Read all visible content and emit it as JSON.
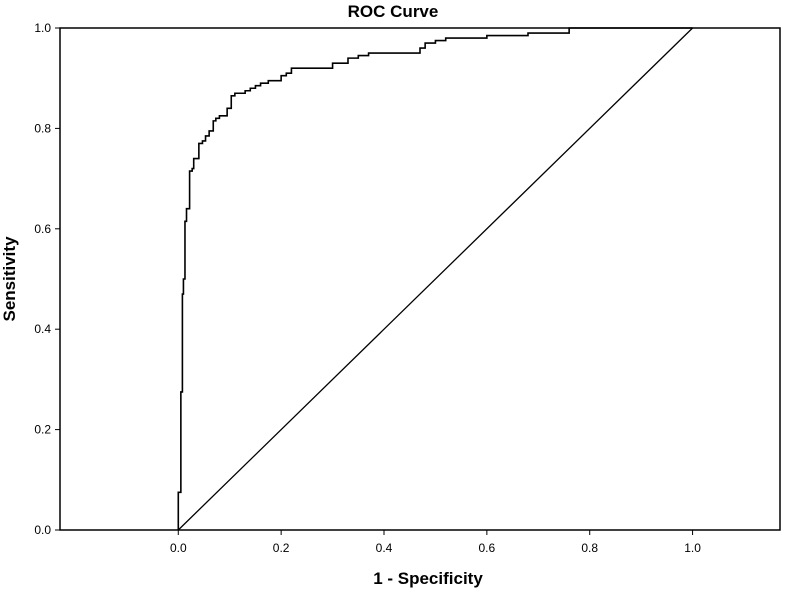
{
  "chart_data": {
    "type": "line",
    "title": "ROC Curve",
    "xlabel": "1 - Specificity",
    "ylabel": "Sensitivity",
    "xlim": [
      -0.23,
      1.17
    ],
    "ylim": [
      0,
      1
    ],
    "x_ticks": [
      "0.0",
      "0.2",
      "0.4",
      "0.6",
      "0.8",
      "1.0"
    ],
    "y_ticks": [
      "0.0",
      "0.2",
      "0.4",
      "0.6",
      "0.8",
      "1.0"
    ],
    "grid": false,
    "legend": "none",
    "colors": {
      "curve": "#000000",
      "reference": "#000000",
      "frame": "#000000"
    },
    "series": [
      {
        "x": [
          0.0,
          0.0,
          0.005,
          0.005,
          0.008,
          0.008,
          0.01,
          0.01,
          0.013,
          0.013,
          0.016,
          0.016,
          0.022,
          0.022,
          0.027,
          0.027,
          0.03,
          0.03,
          0.04,
          0.04,
          0.047,
          0.047,
          0.053,
          0.053,
          0.06,
          0.06,
          0.068,
          0.068,
          0.073,
          0.073,
          0.08,
          0.08,
          0.095,
          0.095,
          0.103,
          0.103,
          0.11,
          0.11,
          0.13,
          0.13,
          0.14,
          0.14,
          0.15,
          0.15,
          0.16,
          0.16,
          0.175,
          0.175,
          0.2,
          0.2,
          0.21,
          0.21,
          0.22,
          0.22,
          0.3,
          0.3,
          0.33,
          0.33,
          0.35,
          0.35,
          0.37,
          0.37,
          0.47,
          0.47,
          0.48,
          0.48,
          0.5,
          0.5,
          0.52,
          0.52,
          0.6,
          0.6,
          0.68,
          0.68,
          0.76,
          0.76,
          1.0
        ],
        "y": [
          0.0,
          0.075,
          0.075,
          0.275,
          0.275,
          0.47,
          0.47,
          0.5,
          0.5,
          0.615,
          0.615,
          0.64,
          0.64,
          0.715,
          0.715,
          0.72,
          0.72,
          0.74,
          0.74,
          0.77,
          0.77,
          0.775,
          0.775,
          0.785,
          0.785,
          0.795,
          0.795,
          0.815,
          0.815,
          0.82,
          0.82,
          0.825,
          0.825,
          0.84,
          0.84,
          0.865,
          0.865,
          0.87,
          0.87,
          0.875,
          0.875,
          0.88,
          0.88,
          0.885,
          0.885,
          0.89,
          0.89,
          0.895,
          0.895,
          0.905,
          0.905,
          0.91,
          0.91,
          0.92,
          0.92,
          0.93,
          0.93,
          0.94,
          0.94,
          0.945,
          0.945,
          0.95,
          0.95,
          0.96,
          0.96,
          0.97,
          0.97,
          0.975,
          0.975,
          0.98,
          0.98,
          0.985,
          0.985,
          0.99,
          0.99,
          1.0,
          1.0
        ]
      },
      {
        "x": [
          0,
          1
        ],
        "y": [
          0,
          1
        ]
      }
    ]
  }
}
